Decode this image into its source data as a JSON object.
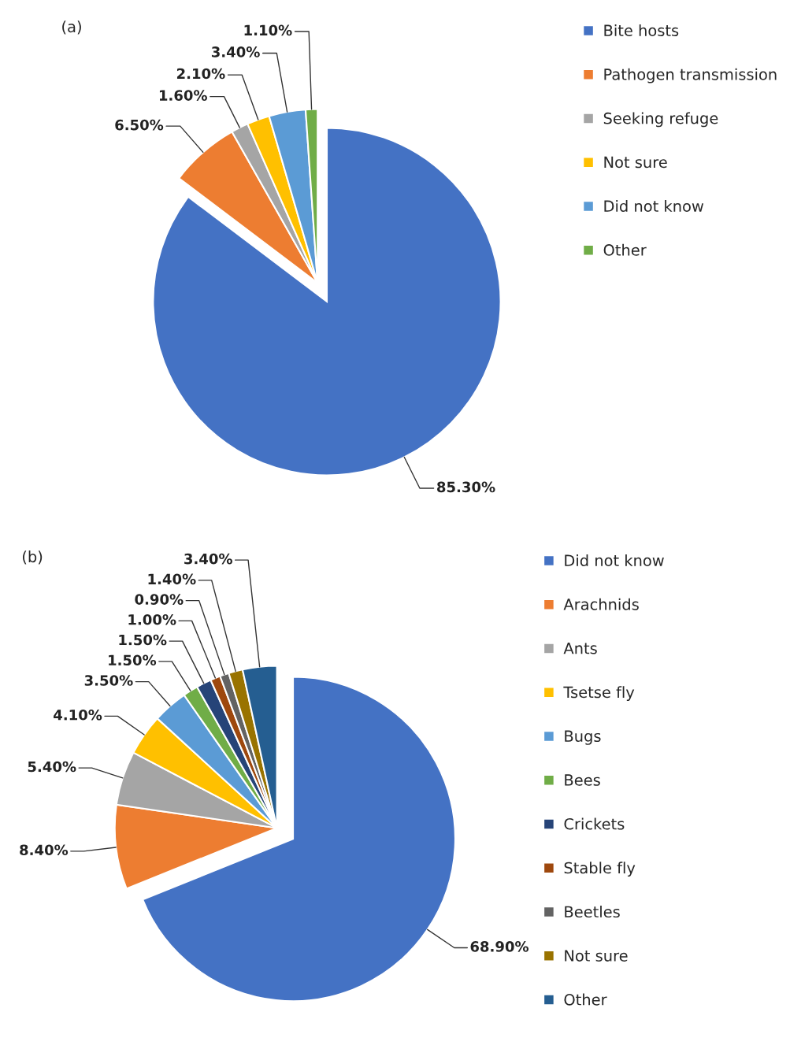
{
  "chart_data": [
    {
      "type": "pie",
      "title": "(a)",
      "legend": "right",
      "categories": [
        "Bite hosts",
        "Pathogen transmission",
        "Seeking refuge",
        "Not sure",
        "Did not know",
        "Other"
      ],
      "values": [
        85.3,
        6.5,
        1.6,
        2.1,
        3.4,
        1.1
      ],
      "colors": [
        "#4472c4",
        "#ed7d31",
        "#a5a5a5",
        "#ffc000",
        "#5b9bd5",
        "#70ad47"
      ],
      "value_labels": [
        "85.30%",
        "6.50%",
        "1.60%",
        "2.10%",
        "3.40%",
        "1.10%"
      ]
    },
    {
      "type": "pie",
      "title": "(b)",
      "legend": "right",
      "categories": [
        "Did not know",
        "Arachnids",
        "Ants",
        "Tsetse fly",
        "Bugs",
        "Bees",
        "Crickets",
        "Stable fly",
        "Beetles",
        "Not sure",
        "Other"
      ],
      "values": [
        68.9,
        8.4,
        5.4,
        4.1,
        3.5,
        1.5,
        1.5,
        1.0,
        0.9,
        1.4,
        3.4
      ],
      "colors": [
        "#4472c4",
        "#ed7d31",
        "#a5a5a5",
        "#ffc000",
        "#5b9bd5",
        "#70ad47",
        "#264478",
        "#9e480e",
        "#636363",
        "#997300",
        "#255e91"
      ],
      "value_labels": [
        "68.90%",
        "8.40%",
        "5.40%",
        "4.10%",
        "3.50%",
        "1.50%",
        "1.50%",
        "1.00%",
        "0.90%",
        "1.40%",
        "3.40%"
      ]
    }
  ]
}
